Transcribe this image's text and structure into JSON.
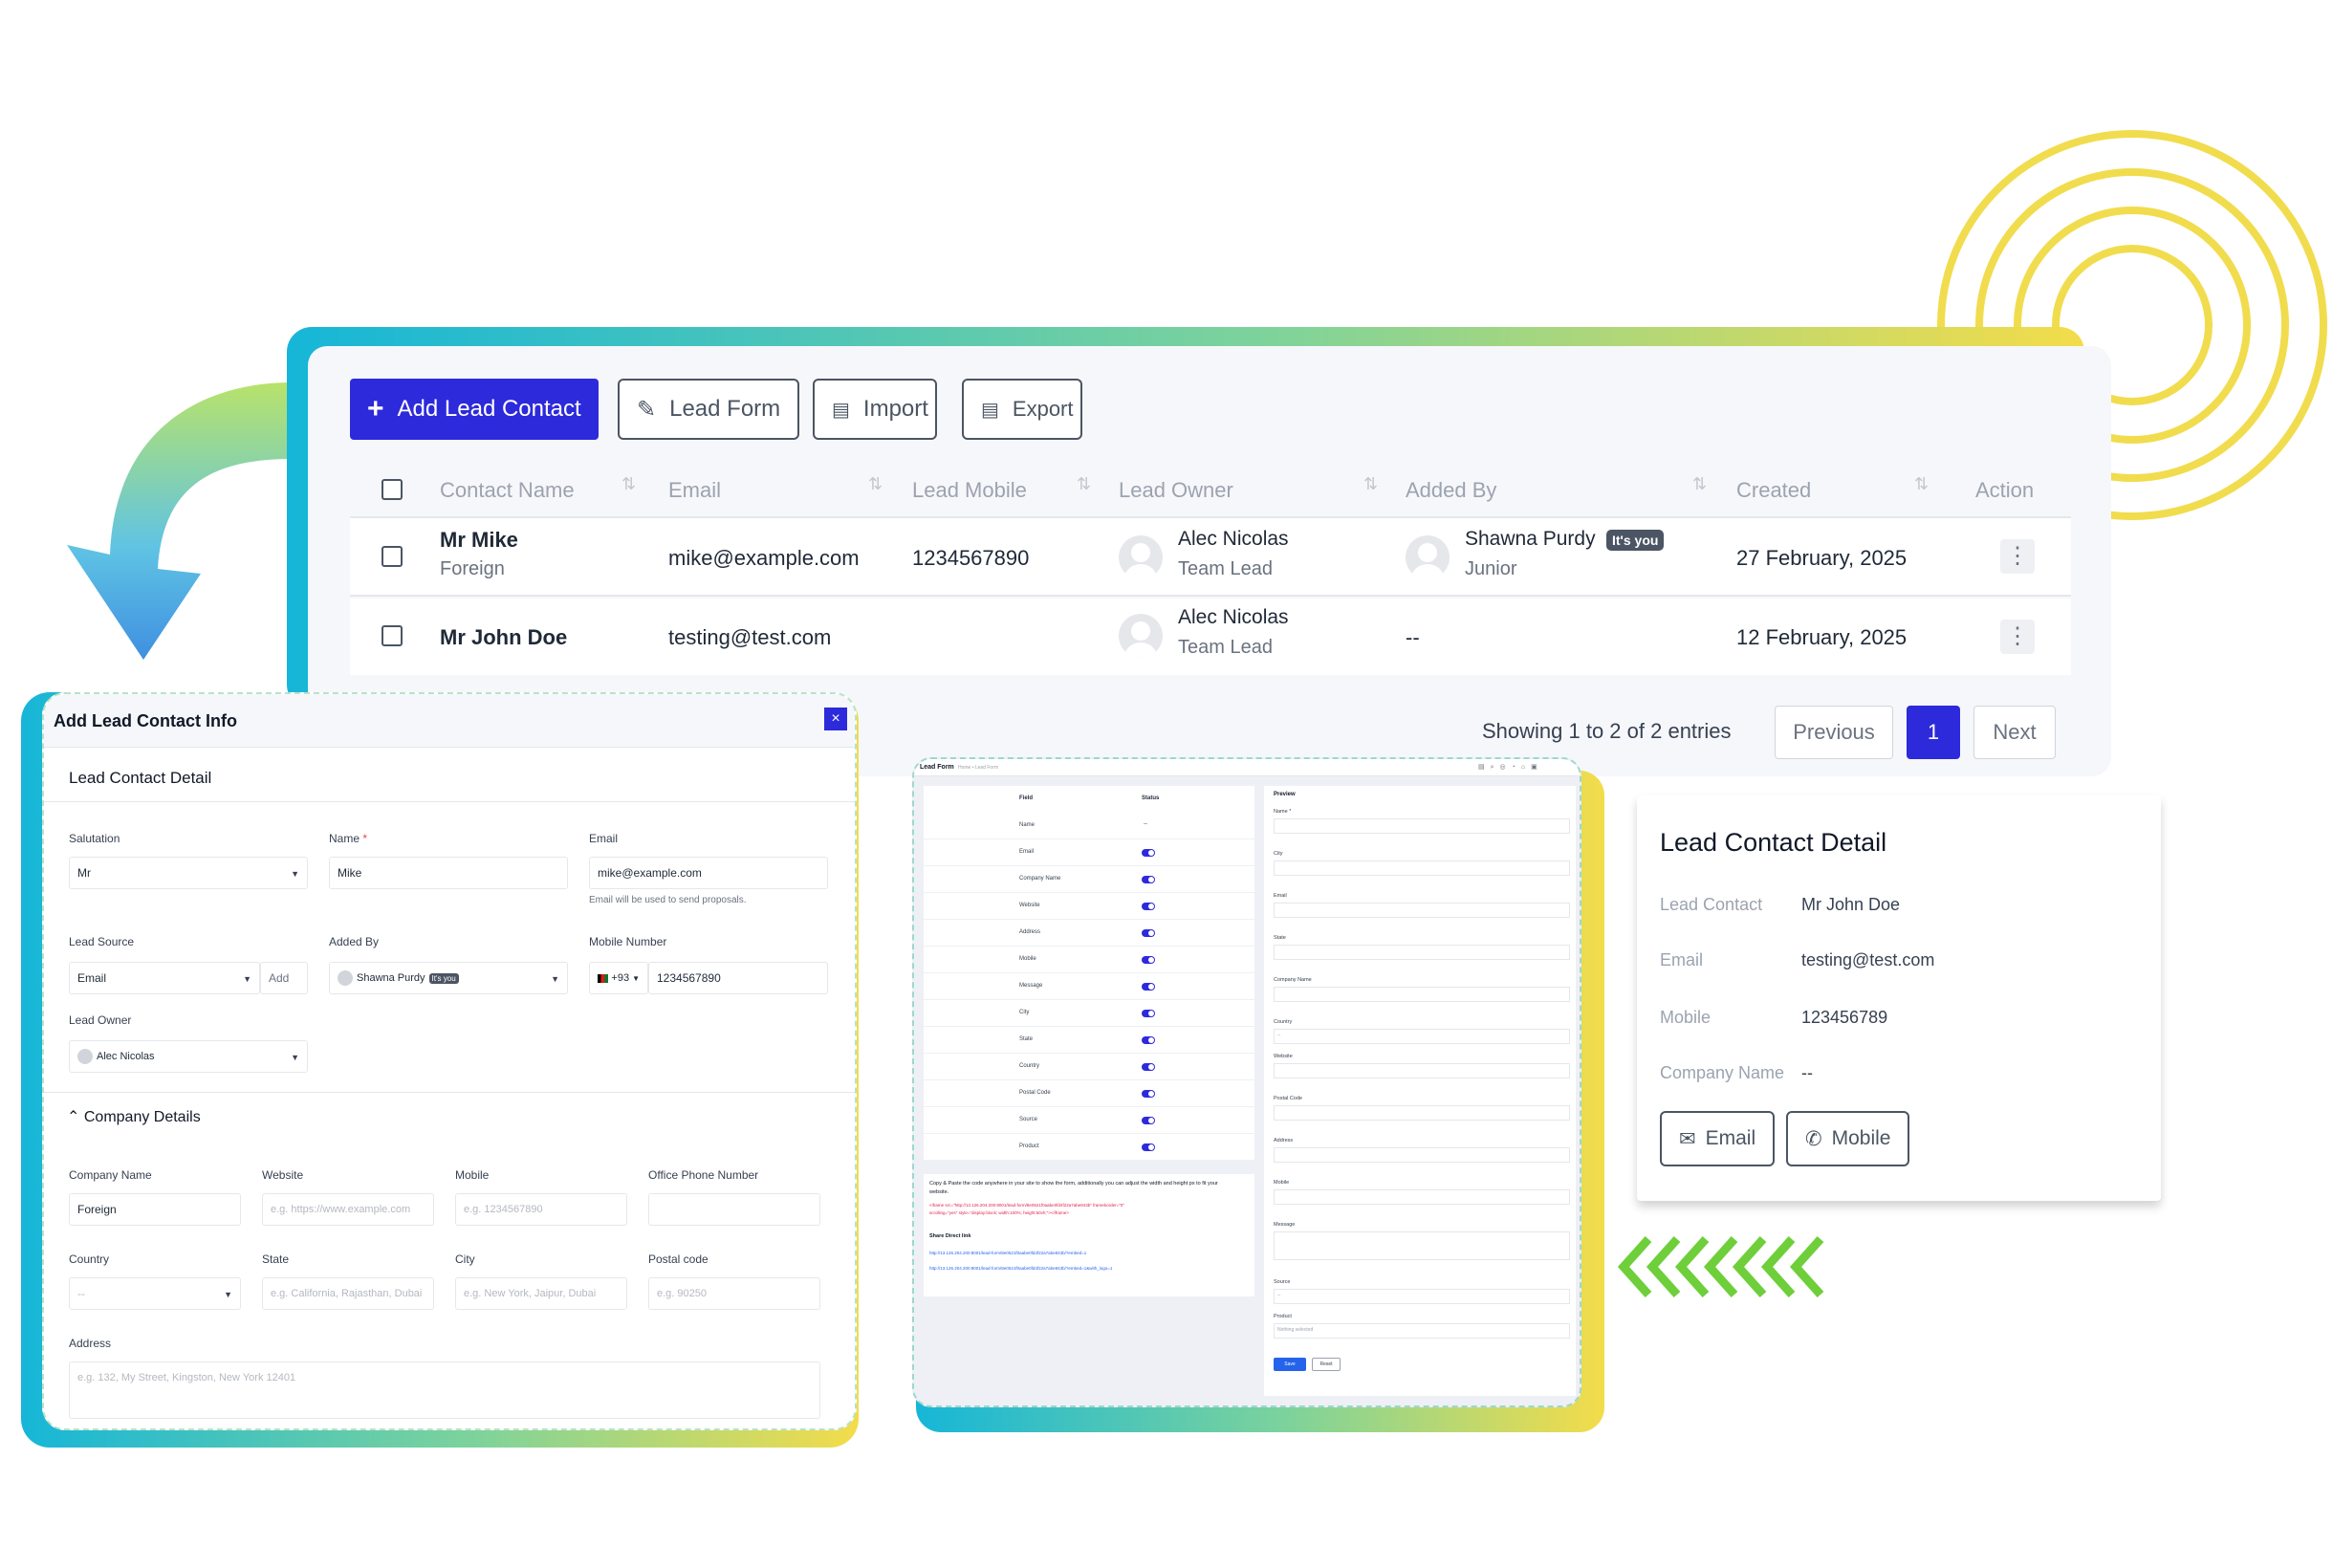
{
  "toolbar": {
    "add_lead_contact": "Add Lead Contact",
    "lead_form": "Lead Form",
    "import": "Import",
    "export": "Export"
  },
  "table": {
    "columns": [
      "Contact Name",
      "Email",
      "Lead Mobile",
      "Lead Owner",
      "Added By",
      "Created",
      "Action"
    ],
    "rows": [
      {
        "name": "Mr Mike",
        "company": "Foreign",
        "email": "mike@example.com",
        "mobile": "1234567890",
        "owner": "Alec Nicolas",
        "owner_role": "Team Lead",
        "added_by": "Shawna Purdy",
        "added_by_badge": "It's you",
        "added_by_role": "Junior",
        "created": "27 February, 2025"
      },
      {
        "name": "Mr John Doe",
        "company": "",
        "email": "testing@test.com",
        "mobile": "",
        "owner": "Alec Nicolas",
        "owner_role": "Team Lead",
        "added_by": "--",
        "created": "12 February, 2025"
      }
    ]
  },
  "pagination": {
    "summary": "Showing 1 to 2 of 2 entries",
    "previous": "Previous",
    "current": "1",
    "next": "Next"
  },
  "modal": {
    "title": "Add Lead Contact Info",
    "section_title": "Lead Contact Detail",
    "salutation_label": "Salutation",
    "salutation_value": "Mr",
    "name_label": "Name",
    "name_required": "*",
    "name_value": "Mike",
    "email_label": "Email",
    "email_value": "mike@example.com",
    "email_help": "Email will be used to send proposals.",
    "lead_source_label": "Lead Source",
    "lead_source_value": "Email",
    "lead_source_add": "Add",
    "added_by_label": "Added By",
    "added_by_value": "Shawna Purdy",
    "added_by_badge": "It's you",
    "mobile_label": "Mobile Number",
    "mobile_code": "+93",
    "mobile_value": "1234567890",
    "lead_owner_label": "Lead Owner",
    "lead_owner_value": "Alec Nicolas",
    "company_section": "Company Details",
    "company_name_label": "Company Name",
    "company_name_value": "Foreign",
    "website_label": "Website",
    "website_placeholder": "e.g. https://www.example.com",
    "mobile2_label": "Mobile",
    "mobile2_placeholder": "e.g. 1234567890",
    "office_phone_label": "Office Phone Number",
    "country_label": "Country",
    "country_value": "--",
    "state_label": "State",
    "state_placeholder": "e.g. California, Rajasthan, Dubai",
    "city_label": "City",
    "city_placeholder": "e.g. New York, Jaipur, Dubai",
    "postal_label": "Postal code",
    "postal_placeholder": "e.g. 90250",
    "address_label": "Address",
    "address_placeholder": "e.g. 132, My Street, Kingston, New York 12401",
    "close": "×"
  },
  "lead_form_preview": {
    "title": "Lead Form",
    "breadcrumb": "Home • Lead Form",
    "col_field": "Field",
    "col_status": "Status",
    "fields": [
      "Name",
      "Email",
      "Company Name",
      "Website",
      "Address",
      "Mobile",
      "Message",
      "City",
      "State",
      "Country",
      "Postal Code",
      "Source",
      "Product"
    ],
    "name_status": "--",
    "preview_title": "Preview",
    "preview_labels": [
      "Name *",
      "City",
      "Email",
      "State",
      "Company Name",
      "Country",
      "Website",
      "Postal Code",
      "Address",
      "Mobile",
      "Message",
      "Source",
      "Product"
    ],
    "country_value": "--",
    "source_value": "--",
    "product_placeholder": "Nothing selected",
    "copy_text": "Copy & Paste the code anywhere in your site to show the form, additionally you can adjust the width and height px to fit your website.",
    "code_line_1": "<iframe src=\"http://13.126.204.200:8001/lead-form/8e0521f0aabe0fd4f22a7abe843b\" frameborder=\"0\"",
    "code_line_2": "scrolling=\"yes\" style=\"display:block; width:100%; height:60vh;\"></iframe>",
    "share_title": "Share Direct link",
    "link_1": "http://13.126.204.200:8001/lead-form/8e0521f0aabe0fd4f22a7abe843b/?embed=1",
    "link_2": "http://13.126.204.200:8001/lead-form/8e0521f0aabe0fd4f22a7abe843b/?embed=1&with_logo=1",
    "save": "Save",
    "reset": "Reset"
  },
  "detail": {
    "title": "Lead Contact Detail",
    "lead_contact_label": "Lead Contact",
    "lead_contact_value": "Mr John Doe",
    "email_label": "Email",
    "email_value": "testing@test.com",
    "mobile_label": "Mobile",
    "mobile_value": "123456789",
    "company_label": "Company Name",
    "company_value": "--",
    "email_button": "Email",
    "mobile_button": "Mobile"
  },
  "colors": {
    "primary": "#2d2adb",
    "gradient_start": "#16b6d8",
    "gradient_end": "#f3dc4a",
    "chevron_green": "#6ecf3a",
    "ring_yellow": "#f1dc4e"
  }
}
